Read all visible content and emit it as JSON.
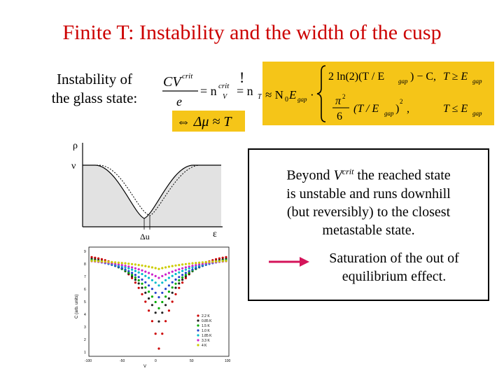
{
  "title": "Finite T: Instability and the width of the cusp",
  "instability": {
    "line1": "Instability of",
    "line2": "the glass state:"
  },
  "equation": {
    "lhs_numerator": "CV",
    "lhs_sup": "crit",
    "lhs_denominator": "e",
    "eq1": "= n",
    "eq1_sub": "V",
    "eq1_sup": "crit",
    "bang": "!",
    "eq2": "= n",
    "eq2_sub": "T",
    "approx": "≈ N",
    "approx_sub": "0",
    "egap": "E",
    "egap_sub": "gap",
    "case1": "2 ln(2)(T / E",
    "case1_end": ") − C,",
    "case1_cond": "T ≥ E",
    "case2_num": "π",
    "case2_den": "6",
    "case2_mid": "(T / E",
    "case2_end": ")",
    "case2_cond": "T ≤ E",
    "delta": "⇔ Δμ ≈ T"
  },
  "rho_plot": {
    "y_label": "ρ",
    "nu_label": "ν",
    "x_label": "ε",
    "delta_label": "Δu"
  },
  "data_plot": {
    "x_ticks": [
      "-100",
      "-50",
      "0",
      "50",
      "100"
    ],
    "y_ticks": [
      "9",
      "8",
      "7",
      "6",
      "5",
      "4",
      "3",
      "2",
      "1"
    ],
    "xlabel": "V",
    "ylabel": "C (arb. units)",
    "legend": [
      "2.2 K",
      "0.85 K",
      "1.5 K",
      "1.0 K",
      "1.85 K",
      "3.3 K",
      "4 K"
    ],
    "series_colors": [
      "#cc0000",
      "#222222",
      "#00aa00",
      "#2244cc",
      "#00bbcc",
      "#cc22cc",
      "#cccc00"
    ]
  },
  "textbox": {
    "beyond": "Beyond",
    "v": "V",
    "v_sup": "crit",
    "line1_rest": " the reached state",
    "line2": "is unstable and runs downhill",
    "line3": "(but reversibly) to the closest",
    "line4": "metastable state.",
    "sat1": "Saturation of the out of",
    "sat2": "equilibrium effect."
  }
}
